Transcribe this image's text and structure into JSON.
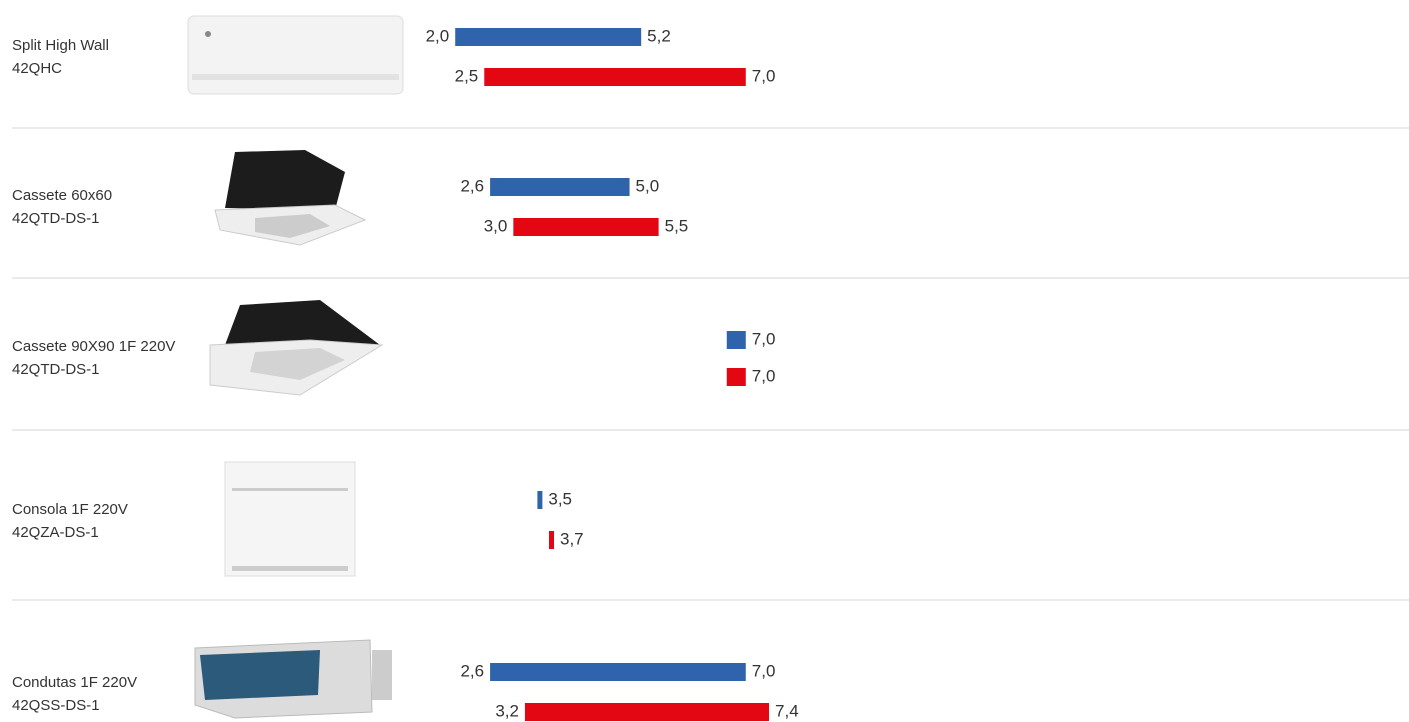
{
  "chart_data": {
    "type": "range-bar",
    "categories": [
      "Split High Wall",
      "Cassete 60x60",
      "Cassete 90X90 1F 220V",
      "Consola 1F 220V",
      "Condutas 1F 220V"
    ],
    "models": [
      "42QHC",
      "42QTD-DS-1",
      "42QTD-DS-1",
      "42QZA-DS-1",
      "42QSS-DS-1"
    ],
    "xlim": [
      0,
      18
    ],
    "series": [
      {
        "color": "#2f64ad",
        "low": [
          2.0,
          2.6,
          null,
          null,
          2.6
        ],
        "high": [
          5.2,
          5.0,
          7.0,
          3.5,
          7.0
        ],
        "low_labels": [
          "2,0",
          "2,6",
          null,
          null,
          "2,6"
        ],
        "high_labels": [
          "5,2",
          "5,0",
          "7,0",
          "3,5",
          "7,0"
        ]
      },
      {
        "color": "#e30613",
        "low": [
          2.5,
          3.0,
          null,
          null,
          3.2
        ],
        "high": [
          7.0,
          5.5,
          7.0,
          3.7,
          7.4
        ],
        "low_labels": [
          "2,5",
          "3,0",
          null,
          null,
          "3,2"
        ],
        "high_labels": [
          "7,0",
          "5,5",
          "7,0",
          "3,7",
          "7,4"
        ]
      }
    ]
  }
}
